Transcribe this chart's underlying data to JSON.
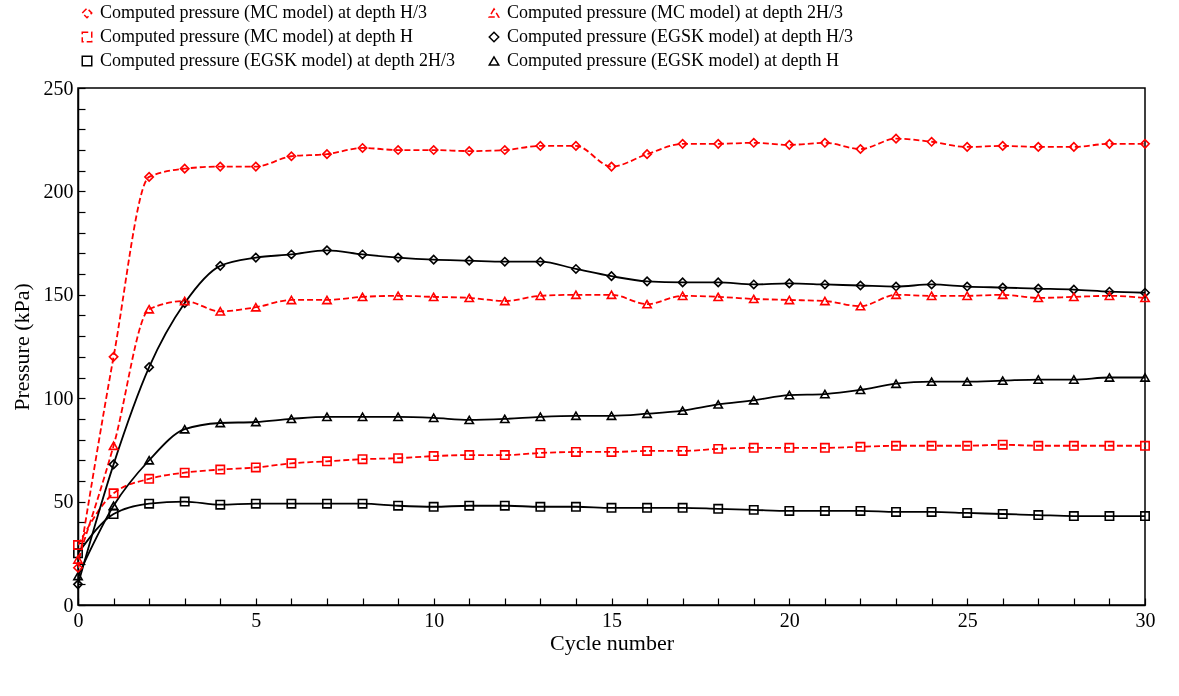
{
  "chart_data": {
    "type": "line",
    "xlabel": "Cycle  number",
    "ylabel": "Pressure (kPa)",
    "x": [
      0,
      1,
      2,
      3,
      4,
      5,
      6,
      7,
      8,
      9,
      10,
      11,
      12,
      13,
      14,
      15,
      16,
      17,
      18,
      19,
      20,
      21,
      22,
      23,
      24,
      25,
      26,
      27,
      28,
      29,
      30
    ],
    "xlim": [
      0,
      30
    ],
    "ylim": [
      0,
      250
    ],
    "xticks": [
      0,
      {
        "value": 1,
        "label": null
      },
      {
        "value": 2,
        "label": null
      },
      {
        "value": 3,
        "label": null
      },
      {
        "value": 4,
        "label": null
      },
      5,
      {
        "value": 6,
        "label": null
      },
      {
        "value": 7,
        "label": null
      },
      {
        "value": 8,
        "label": null
      },
      {
        "value": 9,
        "label": null
      },
      10,
      {
        "value": 11,
        "label": null
      },
      {
        "value": 12,
        "label": null
      },
      {
        "value": 13,
        "label": null
      },
      {
        "value": 14,
        "label": null
      },
      15,
      {
        "value": 16,
        "label": null
      },
      {
        "value": 17,
        "label": null
      },
      {
        "value": 18,
        "label": null
      },
      {
        "value": 19,
        "label": null
      },
      20,
      {
        "value": 21,
        "label": null
      },
      {
        "value": 22,
        "label": null
      },
      {
        "value": 23,
        "label": null
      },
      {
        "value": 24,
        "label": null
      },
      25,
      {
        "value": 26,
        "label": null
      },
      {
        "value": 27,
        "label": null
      },
      {
        "value": 28,
        "label": null
      },
      {
        "value": 29,
        "label": null
      },
      30
    ],
    "yticks": [
      0,
      {
        "value": 10,
        "label": null
      },
      {
        "value": 20,
        "label": null
      },
      {
        "value": 30,
        "label": null
      },
      {
        "value": 40,
        "label": null
      },
      50,
      {
        "value": 60,
        "label": null
      },
      {
        "value": 70,
        "label": null
      },
      {
        "value": 80,
        "label": null
      },
      {
        "value": 90,
        "label": null
      },
      100,
      {
        "value": 110,
        "label": null
      },
      {
        "value": 120,
        "label": null
      },
      {
        "value": 130,
        "label": null
      },
      {
        "value": 140,
        "label": null
      },
      150,
      {
        "value": 160,
        "label": null
      },
      {
        "value": 170,
        "label": null
      },
      {
        "value": 180,
        "label": null
      },
      {
        "value": 190,
        "label": null
      },
      200,
      {
        "value": 210,
        "label": null
      },
      {
        "value": 220,
        "label": null
      },
      {
        "value": 230,
        "label": null
      },
      {
        "value": 240,
        "label": null
      },
      250
    ],
    "grid": false,
    "legend": "top",
    "series": [
      {
        "name": "Computed pressure (MC model) at depth H/3",
        "color": "#ff0000",
        "marker": "diamond",
        "line_style": "dashed",
        "values": [
          18,
          120,
          207,
          211,
          212,
          212,
          217,
          218,
          221,
          220,
          220,
          219.5,
          220,
          222,
          222,
          212,
          218,
          223,
          223,
          223.5,
          222.5,
          223.5,
          220.5,
          225.5,
          224,
          221.5,
          222,
          221.5,
          221.5,
          223,
          223
        ]
      },
      {
        "name": "Computed pressure (MC model) at depth 2H/3",
        "color": "#ff0000",
        "marker": "triangle",
        "line_style": "dashed",
        "values": [
          22,
          77,
          143,
          147,
          142,
          144,
          147.5,
          147.5,
          149,
          149.5,
          149,
          148.5,
          147,
          149.5,
          150,
          150,
          145.5,
          149.5,
          149,
          148,
          147.5,
          147,
          144.5,
          150,
          149.5,
          149.5,
          150,
          148.5,
          149,
          149.5,
          148.5
        ]
      },
      {
        "name": "Computed pressure (MC model) at depth H",
        "color": "#ff0000",
        "marker": "square",
        "line_style": "dashed",
        "values": [
          29,
          54,
          61,
          64,
          65.5,
          66.5,
          68.5,
          69.5,
          70.5,
          71,
          72,
          72.5,
          72.5,
          73.5,
          74,
          74,
          74.5,
          74.5,
          75.5,
          76,
          76,
          76,
          76.5,
          77,
          77,
          77,
          77.5,
          77,
          77,
          77,
          77
        ]
      },
      {
        "name": "Computed pressure (EGSK model) at depth H/3",
        "color": "#000000",
        "marker": "diamond",
        "line_style": "solid",
        "values": [
          10,
          68,
          115,
          146,
          164,
          168,
          169.5,
          171.5,
          169.5,
          168,
          167,
          166.5,
          166,
          166,
          162.5,
          159,
          156.5,
          156,
          156,
          155,
          155.5,
          155,
          154.5,
          154,
          155,
          154,
          153.5,
          153,
          152.5,
          151.5,
          151
        ]
      },
      {
        "name": "Computed pressure (EGSK model) at depth 2H/3",
        "color": "#000000",
        "marker": "square",
        "line_style": "solid",
        "values": [
          25,
          44,
          49,
          50,
          48.5,
          49,
          49,
          49,
          49,
          48,
          47.5,
          48,
          48,
          47.5,
          47.5,
          47,
          47,
          47,
          46.5,
          46,
          45.5,
          45.5,
          45.5,
          45,
          45,
          44.5,
          44,
          43.5,
          43,
          43,
          43
        ]
      },
      {
        "name": "Computed pressure (EGSK model) at depth H",
        "color": "#000000",
        "marker": "triangle",
        "line_style": "solid",
        "values": [
          14,
          48,
          70,
          85,
          88,
          88.5,
          90,
          91,
          91,
          91,
          90.5,
          89.5,
          90,
          91,
          91.5,
          91.5,
          92.5,
          94,
          97,
          99,
          101.5,
          102,
          104,
          107,
          108,
          108,
          108.5,
          109,
          109,
          110,
          110
        ]
      }
    ]
  }
}
